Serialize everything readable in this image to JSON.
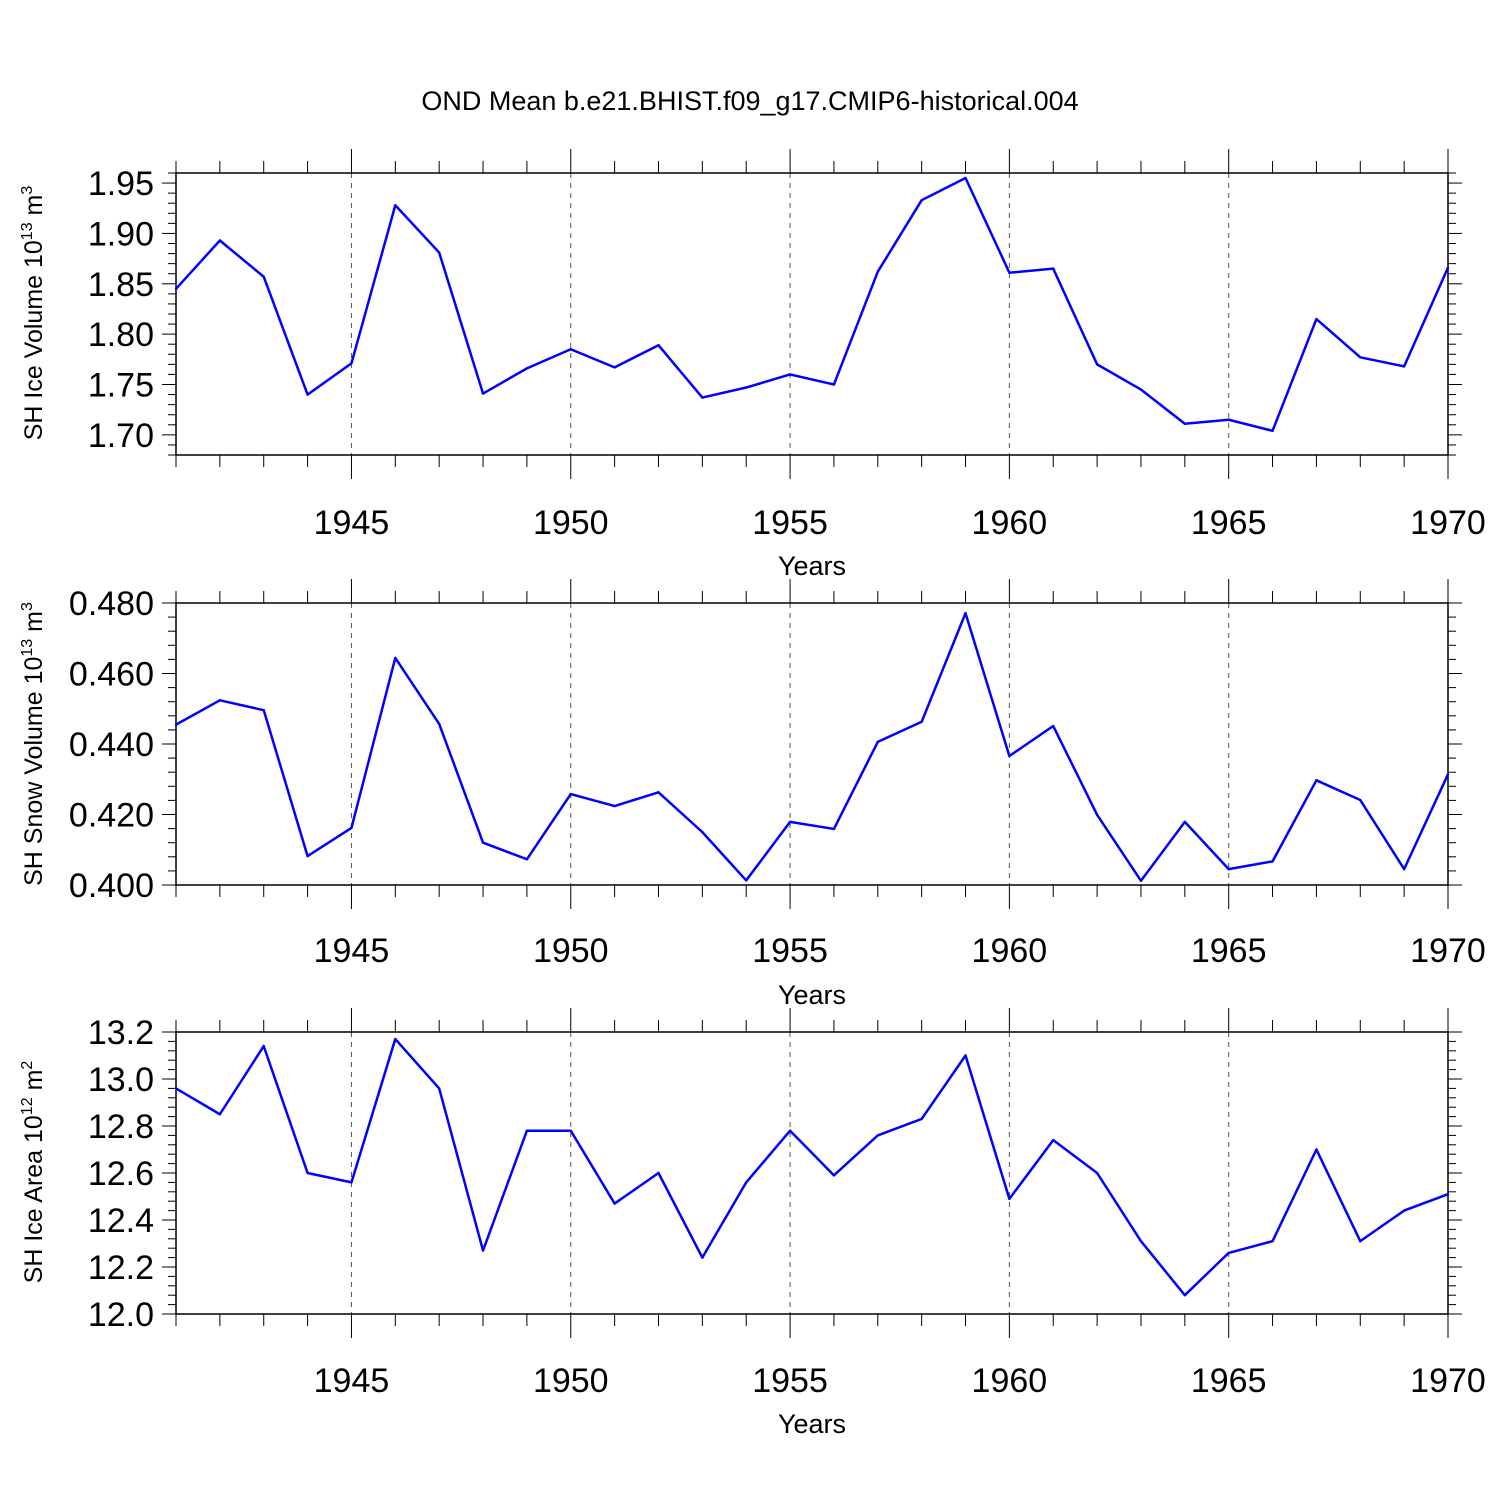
{
  "chart_data": [
    {
      "type": "line",
      "title": "OND Mean b.e21.BHIST.f09_g17.CMIP6-historical.004",
      "xlabel": "Years",
      "ylabel": {
        "prefix": "SH Ice Volume 10",
        "exp": "13",
        "unit": " m",
        "unit_exp": "3"
      },
      "xlim": [
        1941,
        1970
      ],
      "ylim": [
        1.68,
        1.96
      ],
      "xticks": [
        1945,
        1950,
        1955,
        1960,
        1965,
        1970
      ],
      "yticks": [
        1.7,
        1.75,
        1.8,
        1.85,
        1.9,
        1.95
      ],
      "ytick_labels": [
        "1.70",
        "1.75",
        "1.80",
        "1.85",
        "1.90",
        "1.95"
      ],
      "grid": "dashed vertical at x ticks",
      "series": [
        {
          "name": "Ice Volume",
          "color": "#0000ff",
          "x": [
            1941,
            1942,
            1943,
            1944,
            1945,
            1946,
            1947,
            1948,
            1949,
            1950,
            1951,
            1952,
            1953,
            1954,
            1955,
            1956,
            1957,
            1958,
            1959,
            1960,
            1961,
            1962,
            1963,
            1964,
            1965,
            1966,
            1967,
            1968,
            1969,
            1970
          ],
          "values": [
            1.845,
            1.893,
            1.857,
            1.74,
            1.771,
            1.928,
            1.881,
            1.741,
            1.766,
            1.785,
            1.767,
            1.789,
            1.737,
            1.747,
            1.76,
            1.75,
            1.862,
            1.933,
            1.955,
            1.861,
            1.865,
            1.77,
            1.745,
            1.711,
            1.715,
            1.704,
            1.815,
            1.777,
            1.768,
            1.866
          ]
        }
      ]
    },
    {
      "type": "line",
      "title": "",
      "xlabel": "Years",
      "ylabel": {
        "prefix": "SH Snow Volume 10",
        "exp": "13",
        "unit": " m",
        "unit_exp": "3"
      },
      "xlim": [
        1941,
        1970
      ],
      "ylim": [
        0.4,
        0.48
      ],
      "xticks": [
        1945,
        1950,
        1955,
        1960,
        1965,
        1970
      ],
      "yticks": [
        0.4,
        0.42,
        0.44,
        0.46,
        0.48
      ],
      "ytick_labels": [
        "0.400",
        "0.420",
        "0.440",
        "0.460",
        "0.480"
      ],
      "grid": "dashed vertical at x ticks",
      "series": [
        {
          "name": "Snow Volume",
          "color": "#0000ff",
          "x": [
            1941,
            1942,
            1943,
            1944,
            1945,
            1946,
            1947,
            1948,
            1949,
            1950,
            1951,
            1952,
            1953,
            1954,
            1955,
            1956,
            1957,
            1958,
            1959,
            1960,
            1961,
            1962,
            1963,
            1964,
            1965,
            1966,
            1967,
            1968,
            1969,
            1970
          ],
          "values": [
            0.4455,
            0.4524,
            0.4496,
            0.4082,
            0.4162,
            0.4644,
            0.4457,
            0.412,
            0.4073,
            0.4258,
            0.4224,
            0.4263,
            0.415,
            0.4013,
            0.4179,
            0.4159,
            0.4406,
            0.4463,
            0.4771,
            0.4366,
            0.4451,
            0.4199,
            0.4012,
            0.4179,
            0.4045,
            0.4067,
            0.4297,
            0.4241,
            0.4045,
            0.4314
          ]
        }
      ]
    },
    {
      "type": "line",
      "title": "",
      "xlabel": "Years",
      "ylabel": {
        "prefix": "SH Ice Area 10",
        "exp": "12",
        "unit": " m",
        "unit_exp": "2"
      },
      "xlim": [
        1941,
        1970
      ],
      "ylim": [
        12.0,
        13.2
      ],
      "xticks": [
        1945,
        1950,
        1955,
        1960,
        1965,
        1970
      ],
      "yticks": [
        12.0,
        12.2,
        12.4,
        12.6,
        12.8,
        13.0,
        13.2
      ],
      "ytick_labels": [
        "12.0",
        "12.2",
        "12.4",
        "12.6",
        "12.8",
        "13.0",
        "13.2"
      ],
      "grid": "dashed vertical at x ticks",
      "series": [
        {
          "name": "Ice Area",
          "color": "#0000ff",
          "x": [
            1941,
            1942,
            1943,
            1944,
            1945,
            1946,
            1947,
            1948,
            1949,
            1950,
            1951,
            1952,
            1953,
            1954,
            1955,
            1956,
            1957,
            1958,
            1959,
            1960,
            1961,
            1962,
            1963,
            1964,
            1965,
            1966,
            1967,
            1968,
            1969,
            1970
          ],
          "values": [
            12.96,
            12.85,
            13.14,
            12.6,
            12.56,
            13.17,
            12.96,
            12.27,
            12.78,
            12.78,
            12.47,
            12.6,
            12.24,
            12.56,
            12.78,
            12.59,
            12.76,
            12.83,
            13.1,
            12.49,
            12.74,
            12.6,
            12.31,
            12.08,
            12.26,
            12.31,
            12.7,
            12.31,
            12.44,
            12.51
          ]
        }
      ]
    }
  ]
}
